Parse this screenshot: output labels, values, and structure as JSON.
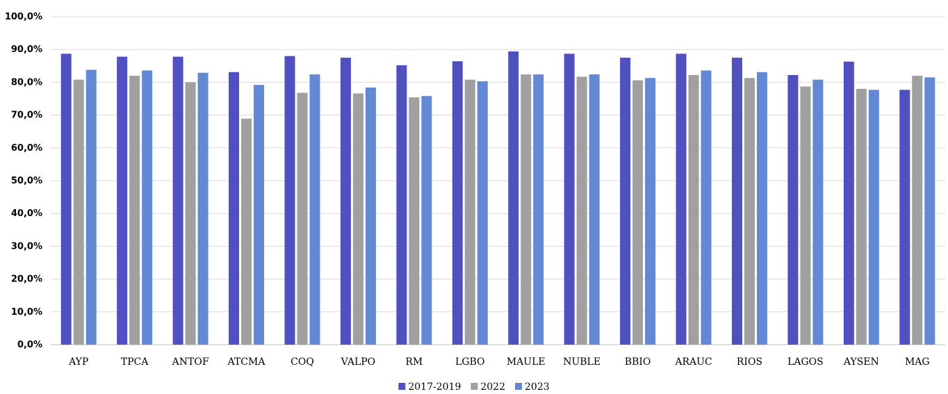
{
  "chart_data": {
    "type": "bar",
    "title": "",
    "xlabel": "",
    "ylabel": "",
    "ylim": [
      0,
      100
    ],
    "ytick_step": 10,
    "ytick_format": "one-decimal-comma-percent",
    "grid": true,
    "legend_position": "bottom",
    "categories": [
      "AYP",
      "TPCA",
      "ANTOF",
      "ATCMA",
      "COQ",
      "VALPO",
      "RM",
      "LGBO",
      "MAULE",
      "NUBLE",
      "BBIO",
      "ARAUC",
      "RIOS",
      "LAGOS",
      "AYSEN",
      "MAG"
    ],
    "series": [
      {
        "name": "2017-2019",
        "color": "#5050c0",
        "values": [
          88.7,
          87.8,
          87.8,
          83.1,
          88.0,
          87.5,
          85.2,
          86.4,
          89.4,
          88.7,
          87.5,
          88.7,
          87.5,
          82.2,
          86.3,
          77.7
        ]
      },
      {
        "name": "2022",
        "color": "#a0a0a0",
        "values": [
          80.8,
          82.0,
          80.0,
          68.9,
          76.8,
          76.6,
          75.4,
          80.8,
          82.4,
          81.7,
          80.6,
          82.2,
          81.3,
          78.7,
          78.0,
          82.0
        ]
      },
      {
        "name": "2023",
        "color": "#6389d4",
        "values": [
          83.8,
          83.6,
          82.9,
          79.2,
          82.4,
          78.4,
          75.8,
          80.3,
          82.4,
          82.4,
          81.3,
          83.6,
          83.1,
          80.8,
          77.7,
          81.5
        ]
      }
    ]
  }
}
